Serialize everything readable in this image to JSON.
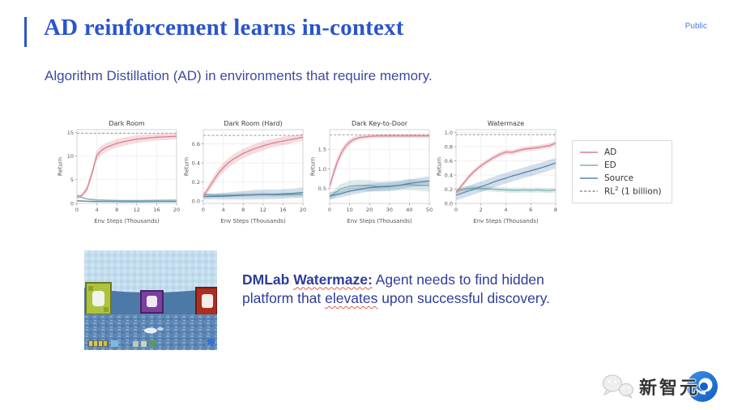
{
  "slide": {
    "title": "AD reinforcement learns in-context",
    "badge": "Public",
    "subtitle": "Algorithm Distillation (AD) in environments that require memory."
  },
  "colors": {
    "accent": "#2b54cd",
    "title": "#2b54cd",
    "badge": "#4a7bf0",
    "subtitle": "#3c4ba3",
    "caption": "#2e3d99"
  },
  "chart_data": {
    "charts": [
      {
        "type": "line",
        "name": "dark-room",
        "title": "Dark Room",
        "xlabel": "Env Steps (Thousands)",
        "ylabel": "Return",
        "xlim": [
          0,
          20
        ],
        "ylim": [
          0,
          15.6
        ],
        "xticks": {
          "v": [
            0,
            4,
            8,
            12,
            16,
            20
          ],
          "labels": [
            "0",
            "4",
            "8",
            "12",
            "16",
            "20"
          ]
        },
        "yticks": {
          "v": [
            0,
            5,
            10,
            15
          ],
          "labels": [
            "0",
            "5",
            "10",
            "15"
          ]
        },
        "ref": 14.8,
        "series": [
          {
            "name": "ED",
            "color": "#7eb3b1",
            "x": [
              0,
              1,
              2,
              3,
              4,
              6,
              8,
              10,
              12,
              16,
              20
            ],
            "y": [
              1.75,
              1.25,
              0.95,
              0.8,
              0.72,
              0.65,
              0.62,
              0.6,
              0.6,
              0.63,
              0.68
            ],
            "band": 0.18
          },
          {
            "name": "Source",
            "color": "#5a84ad",
            "x": [
              0,
              1,
              2,
              3,
              4,
              6,
              8,
              10,
              12,
              16,
              20
            ],
            "y": [
              0.55,
              0.5,
              0.45,
              0.42,
              0.4,
              0.38,
              0.36,
              0.35,
              0.35,
              0.36,
              0.4
            ],
            "band": 0.12
          },
          {
            "name": "AD",
            "color": "#d97f8c",
            "x": [
              0,
              1,
              2,
              3,
              4,
              5,
              6,
              7,
              8,
              10,
              12,
              14,
              16,
              18,
              20
            ],
            "y": [
              1.2,
              1.7,
              3.0,
              6.3,
              10.2,
              11.3,
              11.9,
              12.3,
              12.7,
              13.2,
              13.6,
              13.8,
              14.0,
              14.1,
              14.2
            ],
            "band": [
              0.3,
              0.4,
              0.7,
              0.9,
              1.0,
              1.0,
              0.95,
              0.9,
              0.9,
              0.85,
              0.8,
              0.75,
              0.7,
              0.7,
              0.65
            ]
          }
        ]
      },
      {
        "type": "line",
        "name": "dark-room-hard",
        "title": "Dark Room (Hard)",
        "xlabel": "Env Steps (Thousands)",
        "ylabel": "Return",
        "xlim": [
          0,
          20
        ],
        "ylim": [
          -0.025,
          0.75
        ],
        "xticks": {
          "v": [
            0,
            4,
            8,
            12,
            16,
            20
          ],
          "labels": [
            "0",
            "4",
            "8",
            "12",
            "16",
            "20"
          ]
        },
        "yticks": {
          "v": [
            0.0,
            0.2,
            0.4,
            0.6
          ],
          "labels": [
            "0.0",
            "0.2",
            "0.4",
            "0.6"
          ]
        },
        "ref": 0.69,
        "series": [
          {
            "name": "ED",
            "color": "#7eb3b1",
            "x": [
              0,
              2,
              4,
              6,
              8,
              10,
              12,
              14,
              16,
              18,
              20
            ],
            "y": [
              0.065,
              0.06,
              0.06,
              0.062,
              0.065,
              0.065,
              0.068,
              0.065,
              0.065,
              0.068,
              0.07
            ],
            "band": 0.02
          },
          {
            "name": "Source",
            "color": "#5a84ad",
            "x": [
              0,
              2,
              4,
              6,
              8,
              10,
              12,
              14,
              16,
              18,
              20
            ],
            "y": [
              0.045,
              0.048,
              0.05,
              0.055,
              0.06,
              0.065,
              0.07,
              0.07,
              0.075,
              0.08,
              0.09
            ],
            "band": [
              0.03,
              0.03,
              0.035,
              0.04,
              0.045,
              0.05,
              0.05,
              0.05,
              0.05,
              0.05,
              0.055
            ]
          },
          {
            "name": "AD",
            "color": "#d97f8c",
            "x": [
              0,
              1,
              2,
              3,
              4,
              5,
              6,
              7,
              8,
              10,
              12,
              14,
              16,
              18,
              20
            ],
            "y": [
              0.05,
              0.13,
              0.21,
              0.29,
              0.35,
              0.4,
              0.44,
              0.47,
              0.5,
              0.545,
              0.58,
              0.61,
              0.63,
              0.65,
              0.67
            ],
            "band": [
              0.03,
              0.04,
              0.045,
              0.05,
              0.05,
              0.05,
              0.05,
              0.05,
              0.05,
              0.05,
              0.05,
              0.045,
              0.045,
              0.04,
              0.04
            ]
          }
        ]
      },
      {
        "type": "line",
        "name": "dark-key-to-door",
        "title": "Dark Key-to-Door",
        "xlabel": "Env Steps (Thousands)",
        "ylabel": "Return",
        "xlim": [
          0,
          50
        ],
        "ylim": [
          0.12,
          2.0
        ],
        "xticks": {
          "v": [
            0,
            10,
            20,
            30,
            40,
            50
          ],
          "labels": [
            "0",
            "10",
            "20",
            "30",
            "40",
            "50"
          ]
        },
        "yticks": {
          "v": [
            0.5,
            1.0,
            1.5
          ],
          "labels": [
            "0.5",
            "1.0",
            "1.5"
          ]
        },
        "ref": 1.87,
        "series": [
          {
            "name": "ED",
            "color": "#7eb3b1",
            "x": [
              0,
              5,
              10,
              15,
              20,
              25,
              30,
              35,
              40,
              45,
              50
            ],
            "y": [
              0.28,
              0.48,
              0.56,
              0.58,
              0.57,
              0.55,
              0.56,
              0.58,
              0.6,
              0.58,
              0.57
            ],
            "band": [
              0.08,
              0.12,
              0.14,
              0.14,
              0.14,
              0.13,
              0.13,
              0.13,
              0.14,
              0.14,
              0.15
            ]
          },
          {
            "name": "Source",
            "color": "#5a84ad",
            "x": [
              0,
              5,
              10,
              15,
              20,
              25,
              30,
              35,
              40,
              45,
              50
            ],
            "y": [
              0.31,
              0.36,
              0.43,
              0.48,
              0.52,
              0.54,
              0.55,
              0.58,
              0.63,
              0.66,
              0.69
            ],
            "band": [
              0.09,
              0.09,
              0.1,
              0.1,
              0.1,
              0.1,
              0.1,
              0.1,
              0.1,
              0.11,
              0.12
            ]
          },
          {
            "name": "AD",
            "color": "#d97f8c",
            "x": [
              0,
              2,
              4,
              6,
              8,
              10,
              12,
              15,
              20,
              25,
              30,
              35,
              40,
              45,
              50
            ],
            "y": [
              0.55,
              0.9,
              1.2,
              1.42,
              1.58,
              1.68,
              1.75,
              1.8,
              1.83,
              1.84,
              1.84,
              1.84,
              1.84,
              1.84,
              1.84
            ],
            "band": [
              0.1,
              0.12,
              0.12,
              0.1,
              0.09,
              0.08,
              0.07,
              0.06,
              0.05,
              0.05,
              0.05,
              0.05,
              0.05,
              0.05,
              0.05
            ]
          }
        ]
      },
      {
        "type": "line",
        "name": "watermaze",
        "title": "Watermaze",
        "xlabel": "Env Steps (Thousands)",
        "ylabel": "Return",
        "xlim": [
          0,
          8
        ],
        "ylim": [
          0,
          1.04
        ],
        "xticks": {
          "v": [
            0,
            2,
            4,
            6,
            8
          ],
          "labels": [
            "0",
            "2",
            "4",
            "6",
            "8"
          ]
        },
        "yticks": {
          "v": [
            0.0,
            0.2,
            0.4,
            0.6,
            0.8,
            1.0
          ],
          "labels": [
            "0.0",
            "0.2",
            "0.4",
            "0.6",
            "0.8",
            "1.0"
          ]
        },
        "ref": 0.97,
        "series": [
          {
            "name": "ED",
            "color": "#7eb3b1",
            "x": [
              0,
              0.5,
              1,
              1.5,
              2,
              2.5,
              3,
              3.5,
              4,
              4.5,
              5,
              5.5,
              6,
              6.5,
              7,
              7.5,
              8
            ],
            "y": [
              0.175,
              0.195,
              0.21,
              0.215,
              0.21,
              0.205,
              0.2,
              0.195,
              0.19,
              0.185,
              0.185,
              0.19,
              0.185,
              0.19,
              0.185,
              0.18,
              0.19
            ],
            "band": 0.035
          },
          {
            "name": "Source",
            "color": "#5a84ad",
            "x": [
              0,
              0.5,
              1,
              1.5,
              2,
              2.5,
              3,
              3.5,
              4,
              4.5,
              5,
              5.5,
              6,
              6.5,
              7,
              7.5,
              8
            ],
            "y": [
              0.115,
              0.145,
              0.175,
              0.205,
              0.235,
              0.265,
              0.3,
              0.33,
              0.355,
              0.385,
              0.41,
              0.435,
              0.46,
              0.485,
              0.51,
              0.54,
              0.57
            ],
            "band": 0.075
          },
          {
            "name": "AD",
            "color": "#d97f8c",
            "x": [
              0,
              0.5,
              1,
              1.5,
              2,
              2.5,
              3,
              3.5,
              4,
              4.5,
              5,
              5.5,
              6,
              6.5,
              7,
              7.5,
              8
            ],
            "y": [
              0.15,
              0.26,
              0.37,
              0.46,
              0.53,
              0.59,
              0.645,
              0.69,
              0.725,
              0.72,
              0.745,
              0.765,
              0.775,
              0.785,
              0.8,
              0.815,
              0.85
            ],
            "band": 0.035
          }
        ]
      }
    ],
    "legend": {
      "position": "right",
      "items": [
        {
          "pre": "AD",
          "color": "#d97f8c",
          "dash": false
        },
        {
          "pre": "ED",
          "color": "#7eb3b1",
          "dash": false
        },
        {
          "pre": "Source",
          "color": "#5a84ad",
          "dash": false
        },
        {
          "pre": "RL",
          "sup": "2",
          "post": " (1 billion)",
          "color": "#8c8c8c",
          "dash": true
        }
      ]
    }
  },
  "caption": {
    "segments": [
      {
        "t": "DMLab ",
        "b": true
      },
      {
        "t": "Watermaze:",
        "b": true,
        "sq": true
      },
      {
        "t": " Agent needs to find hidden"
      },
      {
        "br": true
      },
      {
        "t": "platform that "
      },
      {
        "t": "elevates",
        "sq": true
      },
      {
        "t": " upon successful discovery."
      }
    ]
  },
  "logo": {
    "text": "新智元"
  }
}
